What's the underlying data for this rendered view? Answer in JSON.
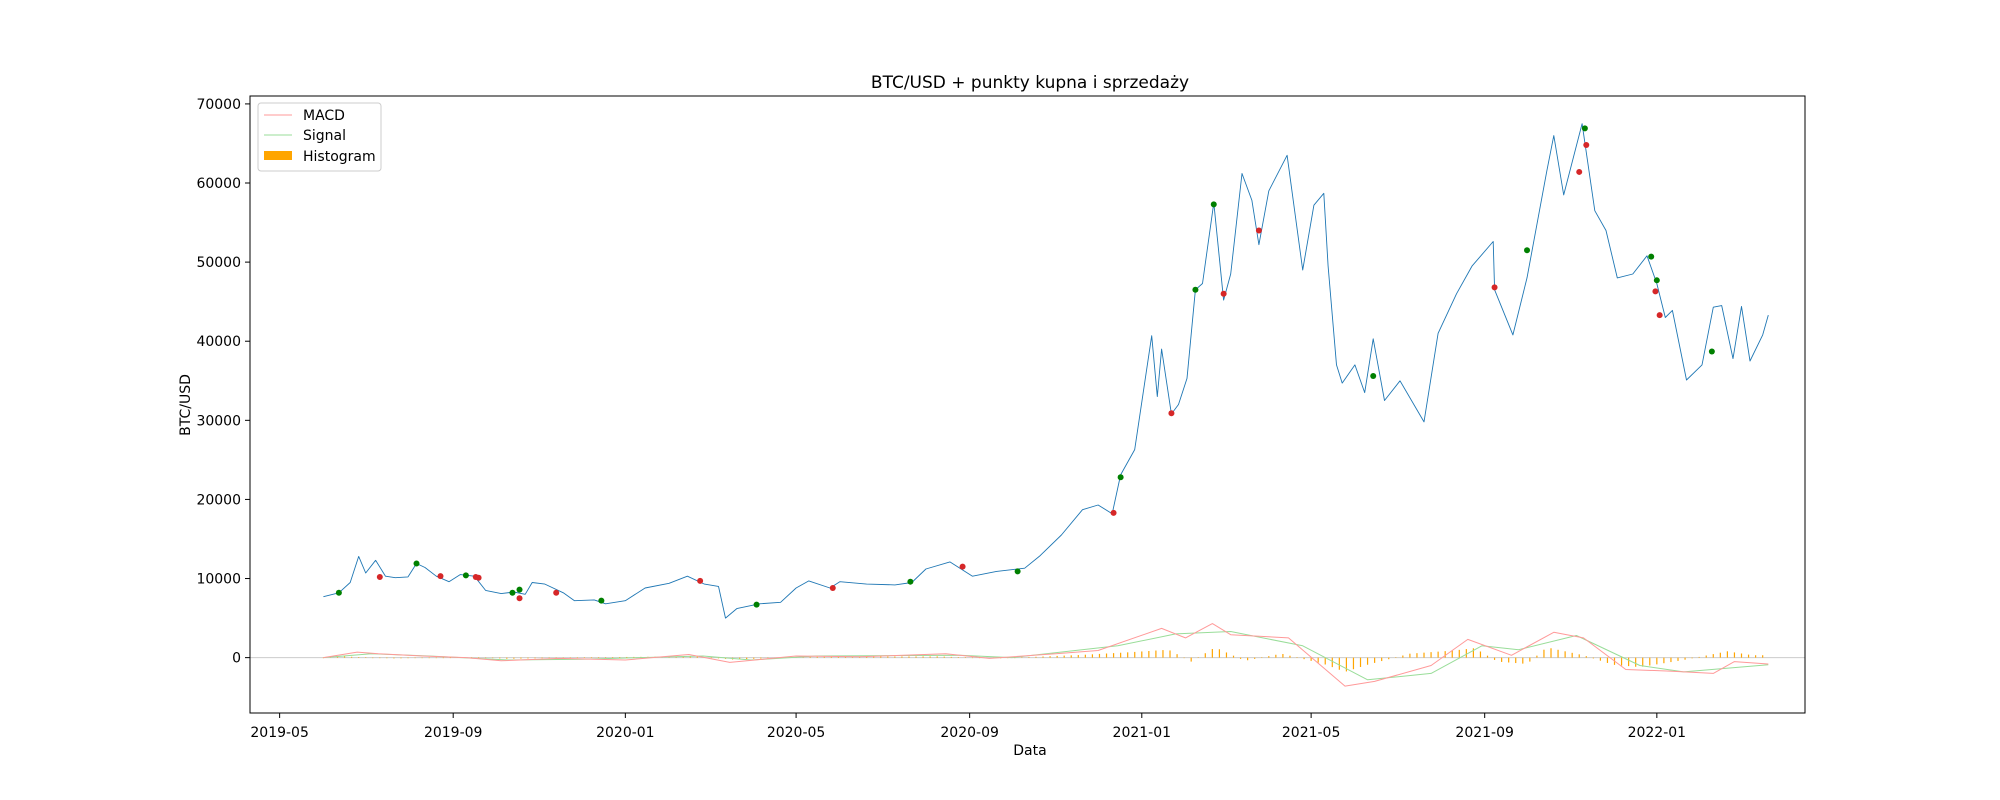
{
  "chart_data": {
    "type": "line",
    "title": "BTC/USD + punkty kupna i sprzedaży",
    "xlabel": "Data",
    "ylabel": "BTC/USD",
    "xlim": [
      "2019-04-10",
      "2022-04-16"
    ],
    "ylim": [
      -7000,
      71000
    ],
    "x_ticks": [
      "2019-05",
      "2019-09",
      "2020-01",
      "2020-05",
      "2020-09",
      "2021-01",
      "2021-05",
      "2021-09",
      "2022-01"
    ],
    "y_ticks": [
      0,
      10000,
      20000,
      30000,
      40000,
      50000,
      60000,
      70000
    ],
    "legend": {
      "position": "upper-left",
      "entries": [
        {
          "label": "MACD",
          "color": "#ff9999"
        },
        {
          "label": "Signal",
          "color": "#99dd99"
        },
        {
          "label": "Histogram",
          "color": "#ffa500"
        }
      ]
    },
    "colors": {
      "price": "#1f77b4",
      "macd": "#ff9999",
      "signal": "#99dd99",
      "histogram": "#ffa500",
      "buy": "#008000",
      "sell": "#d62728",
      "zero_line": "#cccccc"
    },
    "price": {
      "name": "",
      "points": [
        [
          "2019-06-01",
          7700
        ],
        [
          "2019-06-12",
          8200
        ],
        [
          "2019-06-20",
          9500
        ],
        [
          "2019-06-26",
          12800
        ],
        [
          "2019-07-01",
          10700
        ],
        [
          "2019-07-08",
          12300
        ],
        [
          "2019-07-15",
          10300
        ],
        [
          "2019-07-22",
          10100
        ],
        [
          "2019-07-31",
          10200
        ],
        [
          "2019-08-06",
          11900
        ],
        [
          "2019-08-12",
          11400
        ],
        [
          "2019-08-20",
          10300
        ],
        [
          "2019-08-29",
          9600
        ],
        [
          "2019-09-06",
          10500
        ],
        [
          "2019-09-16",
          10300
        ],
        [
          "2019-09-24",
          8500
        ],
        [
          "2019-10-05",
          8100
        ],
        [
          "2019-10-14",
          8300
        ],
        [
          "2019-10-22",
          8000
        ],
        [
          "2019-10-27",
          9500
        ],
        [
          "2019-11-05",
          9300
        ],
        [
          "2019-11-18",
          8200
        ],
        [
          "2019-11-26",
          7200
        ],
        [
          "2019-12-10",
          7300
        ],
        [
          "2019-12-18",
          6800
        ],
        [
          "2020-01-01",
          7200
        ],
        [
          "2020-01-15",
          8800
        ],
        [
          "2020-02-01",
          9400
        ],
        [
          "2020-02-14",
          10300
        ],
        [
          "2020-02-26",
          9300
        ],
        [
          "2020-03-07",
          9000
        ],
        [
          "2020-03-12",
          5000
        ],
        [
          "2020-03-20",
          6200
        ],
        [
          "2020-04-05",
          6800
        ],
        [
          "2020-04-20",
          7000
        ],
        [
          "2020-05-01",
          8800
        ],
        [
          "2020-05-10",
          9700
        ],
        [
          "2020-05-25",
          8800
        ],
        [
          "2020-06-01",
          9600
        ],
        [
          "2020-06-20",
          9300
        ],
        [
          "2020-07-10",
          9200
        ],
        [
          "2020-07-22",
          9500
        ],
        [
          "2020-08-01",
          11200
        ],
        [
          "2020-08-18",
          12100
        ],
        [
          "2020-09-03",
          10300
        ],
        [
          "2020-09-20",
          10900
        ],
        [
          "2020-10-10",
          11300
        ],
        [
          "2020-10-21",
          12900
        ],
        [
          "2020-11-05",
          15500
        ],
        [
          "2020-11-20",
          18700
        ],
        [
          "2020-12-01",
          19300
        ],
        [
          "2020-12-11",
          18200
        ],
        [
          "2020-12-17",
          23100
        ],
        [
          "2020-12-27",
          26300
        ],
        [
          "2021-01-08",
          40700
        ],
        [
          "2021-01-12",
          33000
        ],
        [
          "2021-01-15",
          39000
        ],
        [
          "2021-01-22",
          30800
        ],
        [
          "2021-01-27",
          32000
        ],
        [
          "2021-02-02",
          35300
        ],
        [
          "2021-02-08",
          46500
        ],
        [
          "2021-02-13",
          47300
        ],
        [
          "2021-02-21",
          57500
        ],
        [
          "2021-02-28",
          45200
        ],
        [
          "2021-03-05",
          48500
        ],
        [
          "2021-03-13",
          61200
        ],
        [
          "2021-03-20",
          57800
        ],
        [
          "2021-03-25",
          52200
        ],
        [
          "2021-04-01",
          59000
        ],
        [
          "2021-04-14",
          63500
        ],
        [
          "2021-04-25",
          49000
        ],
        [
          "2021-05-03",
          57200
        ],
        [
          "2021-05-10",
          58700
        ],
        [
          "2021-05-13",
          49500
        ],
        [
          "2021-05-19",
          37000
        ],
        [
          "2021-05-23",
          34700
        ],
        [
          "2021-06-01",
          37000
        ],
        [
          "2021-06-08",
          33500
        ],
        [
          "2021-06-14",
          40300
        ],
        [
          "2021-06-22",
          32500
        ],
        [
          "2021-07-03",
          35000
        ],
        [
          "2021-07-20",
          29800
        ],
        [
          "2021-07-30",
          41000
        ],
        [
          "2021-08-12",
          46000
        ],
        [
          "2021-08-23",
          49500
        ],
        [
          "2021-09-07",
          52600
        ],
        [
          "2021-09-08",
          46500
        ],
        [
          "2021-09-21",
          40800
        ],
        [
          "2021-10-01",
          48000
        ],
        [
          "2021-10-15",
          61500
        ],
        [
          "2021-10-20",
          66000
        ],
        [
          "2021-10-27",
          58500
        ],
        [
          "2021-11-09",
          67500
        ],
        [
          "2021-11-18",
          56500
        ],
        [
          "2021-11-26",
          54000
        ],
        [
          "2021-12-04",
          48000
        ],
        [
          "2021-12-15",
          48500
        ],
        [
          "2021-12-25",
          50800
        ],
        [
          "2022-01-01",
          47300
        ],
        [
          "2022-01-07",
          43000
        ],
        [
          "2022-01-12",
          43900
        ],
        [
          "2022-01-22",
          35100
        ],
        [
          "2022-02-02",
          37000
        ],
        [
          "2022-02-10",
          44300
        ],
        [
          "2022-02-16",
          44500
        ],
        [
          "2022-02-24",
          37800
        ],
        [
          "2022-03-02",
          44400
        ],
        [
          "2022-03-08",
          37500
        ],
        [
          "2022-03-17",
          40800
        ],
        [
          "2022-03-21",
          43300
        ]
      ]
    },
    "macd": {
      "name": "MACD",
      "points": [
        [
          "2019-06-01",
          0
        ],
        [
          "2019-06-25",
          700
        ],
        [
          "2019-07-10",
          500
        ],
        [
          "2019-08-10",
          200
        ],
        [
          "2019-09-10",
          0
        ],
        [
          "2019-10-05",
          -400
        ],
        [
          "2019-11-15",
          -100
        ],
        [
          "2020-01-01",
          -300
        ],
        [
          "2020-02-15",
          400
        ],
        [
          "2020-03-15",
          -600
        ],
        [
          "2020-05-01",
          200
        ],
        [
          "2020-06-15",
          100
        ],
        [
          "2020-08-15",
          500
        ],
        [
          "2020-09-15",
          -100
        ],
        [
          "2020-11-01",
          500
        ],
        [
          "2020-12-01",
          900
        ],
        [
          "2021-01-15",
          3700
        ],
        [
          "2021-02-01",
          2500
        ],
        [
          "2021-02-20",
          4300
        ],
        [
          "2021-03-05",
          2900
        ],
        [
          "2021-04-15",
          2500
        ],
        [
          "2021-05-25",
          -3600
        ],
        [
          "2021-06-15",
          -3000
        ],
        [
          "2021-07-25",
          -1000
        ],
        [
          "2021-08-20",
          2300
        ],
        [
          "2021-09-20",
          300
        ],
        [
          "2021-10-20",
          3200
        ],
        [
          "2021-11-10",
          2500
        ],
        [
          "2021-12-10",
          -1500
        ],
        [
          "2022-01-10",
          -1700
        ],
        [
          "2022-02-10",
          -2000
        ],
        [
          "2022-02-25",
          -500
        ],
        [
          "2022-03-21",
          -800
        ]
      ]
    },
    "signal": {
      "name": "Signal",
      "points": [
        [
          "2019-06-01",
          0
        ],
        [
          "2019-07-05",
          500
        ],
        [
          "2019-08-15",
          200
        ],
        [
          "2019-10-10",
          -300
        ],
        [
          "2019-12-01",
          -200
        ],
        [
          "2020-02-25",
          200
        ],
        [
          "2020-03-30",
          -300
        ],
        [
          "2020-05-15",
          200
        ],
        [
          "2020-08-25",
          300
        ],
        [
          "2020-10-01",
          0
        ],
        [
          "2020-12-15",
          1500
        ],
        [
          "2021-01-25",
          3000
        ],
        [
          "2021-03-05",
          3300
        ],
        [
          "2021-04-25",
          1500
        ],
        [
          "2021-06-10",
          -2800
        ],
        [
          "2021-07-25",
          -2000
        ],
        [
          "2021-08-30",
          1500
        ],
        [
          "2021-09-25",
          1000
        ],
        [
          "2021-11-05",
          2800
        ],
        [
          "2021-12-20",
          -1000
        ],
        [
          "2022-01-20",
          -1800
        ],
        [
          "2022-03-01",
          -1200
        ],
        [
          "2022-03-21",
          -900
        ]
      ]
    },
    "histogram": {
      "name": "Histogram",
      "points": [
        [
          "2019-06-15",
          150
        ],
        [
          "2019-07-20",
          -100
        ],
        [
          "2019-09-15",
          50
        ],
        [
          "2019-10-10",
          -150
        ],
        [
          "2019-12-15",
          60
        ],
        [
          "2020-02-20",
          150
        ],
        [
          "2020-03-18",
          -250
        ],
        [
          "2020-05-05",
          100
        ],
        [
          "2020-08-10",
          150
        ],
        [
          "2020-09-20",
          -100
        ],
        [
          "2020-11-20",
          350
        ],
        [
          "2020-12-25",
          700
        ],
        [
          "2021-01-20",
          1000
        ],
        [
          "2021-02-05",
          -500
        ],
        [
          "2021-02-22",
          1300
        ],
        [
          "2021-03-15",
          -400
        ],
        [
          "2021-04-10",
          500
        ],
        [
          "2021-05-10",
          -800
        ],
        [
          "2021-05-25",
          -1800
        ],
        [
          "2021-06-10",
          -900
        ],
        [
          "2021-07-10",
          500
        ],
        [
          "2021-08-10",
          900
        ],
        [
          "2021-08-25",
          1200
        ],
        [
          "2021-09-10",
          -500
        ],
        [
          "2021-10-01",
          -800
        ],
        [
          "2021-10-15",
          1300
        ],
        [
          "2021-11-10",
          300
        ],
        [
          "2021-12-01",
          -900
        ],
        [
          "2021-12-20",
          -1200
        ],
        [
          "2022-01-20",
          -300
        ],
        [
          "2022-02-20",
          800
        ],
        [
          "2022-03-10",
          300
        ]
      ]
    },
    "buy_points": [
      [
        "2019-06-12",
        8200
      ],
      [
        "2019-08-06",
        11900
      ],
      [
        "2019-09-10",
        10400
      ],
      [
        "2019-10-13",
        8200
      ],
      [
        "2019-10-18",
        8600
      ],
      [
        "2019-12-15",
        7200
      ],
      [
        "2020-04-03",
        6700
      ],
      [
        "2020-07-21",
        9600
      ],
      [
        "2020-10-05",
        10900
      ],
      [
        "2020-12-17",
        22800
      ],
      [
        "2021-02-08",
        46500
      ],
      [
        "2021-02-21",
        57300
      ],
      [
        "2021-06-14",
        35600
      ],
      [
        "2021-10-01",
        51500
      ],
      [
        "2021-11-11",
        66900
      ],
      [
        "2021-12-28",
        50700
      ],
      [
        "2022-01-01",
        47700
      ],
      [
        "2022-02-09",
        38700
      ]
    ],
    "sell_points": [
      [
        "2019-07-11",
        10200
      ],
      [
        "2019-08-23",
        10300
      ],
      [
        "2019-09-17",
        10200
      ],
      [
        "2019-09-19",
        10100
      ],
      [
        "2019-10-18",
        7500
      ],
      [
        "2019-11-13",
        8200
      ],
      [
        "2020-02-23",
        9700
      ],
      [
        "2020-05-27",
        8800
      ],
      [
        "2020-08-27",
        11500
      ],
      [
        "2020-12-12",
        18300
      ],
      [
        "2021-01-22",
        30900
      ],
      [
        "2021-02-28",
        46000
      ],
      [
        "2021-03-25",
        54000
      ],
      [
        "2021-09-08",
        46800
      ],
      [
        "2021-11-07",
        61400
      ],
      [
        "2021-11-12",
        64800
      ],
      [
        "2021-12-31",
        46300
      ],
      [
        "2022-01-03",
        43300
      ]
    ]
  }
}
